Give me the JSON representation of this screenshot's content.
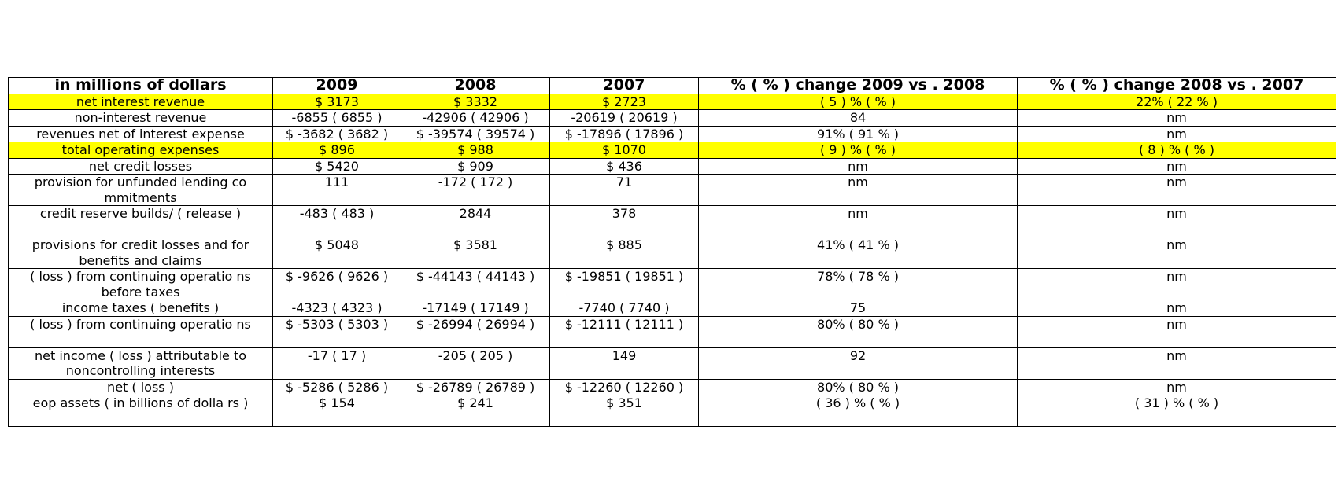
{
  "chart_data": {
    "type": "table",
    "columns": [
      "in millions of dollars",
      "2009",
      "2008",
      "2007",
      "% (  % ) change 2009 vs . 2008",
      "% (  % ) change 2008 vs . 2007"
    ],
    "rows": [
      {
        "cells": [
          "net interest revenue",
          "$ 3173",
          "$ 3332",
          "$ 2723",
          "( 5 ) % (  % )",
          "22% ( 22 % )"
        ],
        "highlight": true,
        "tall": false
      },
      {
        "cells": [
          "non-interest revenue",
          "-6855 ( 6855 )",
          "-42906 ( 42906 )",
          "-20619 ( 20619 )",
          "84",
          "nm"
        ],
        "highlight": false,
        "tall": false
      },
      {
        "cells": [
          "revenues net of interest expense",
          "$ -3682 ( 3682 )",
          "$ -39574 ( 39574 )",
          "$ -17896 ( 17896 )",
          "91% ( 91 % )",
          "nm"
        ],
        "highlight": false,
        "tall": false
      },
      {
        "cells": [
          "total operating expenses",
          "$ 896",
          "$ 988",
          "$ 1070",
          "( 9 ) % (  % )",
          "( 8 ) % (  % )"
        ],
        "highlight": true,
        "tall": false
      },
      {
        "cells": [
          "net credit losses",
          "$ 5420",
          "$ 909",
          "$ 436",
          "nm",
          "nm"
        ],
        "highlight": false,
        "tall": false
      },
      {
        "cells": [
          "provision for unfunded lending co mmitments",
          "111",
          "-172 ( 172 )",
          "71",
          "nm",
          "nm"
        ],
        "highlight": false,
        "tall": true
      },
      {
        "cells": [
          "credit reserve builds/ ( release )",
          "-483 ( 483 )",
          "2844",
          "378",
          "nm",
          "nm"
        ],
        "highlight": false,
        "tall": true
      },
      {
        "cells": [
          "provisions for credit losses and for benefits and claims",
          "$ 5048",
          "$ 3581",
          "$ 885",
          "41% ( 41 % )",
          "nm"
        ],
        "highlight": false,
        "tall": true
      },
      {
        "cells": [
          "( loss ) from continuing operatio ns before taxes",
          "$ -9626 ( 9626 )",
          "$ -44143 ( 44143 )",
          "$ -19851 ( 19851 )",
          "78% ( 78 % )",
          "nm"
        ],
        "highlight": false,
        "tall": true
      },
      {
        "cells": [
          "income taxes ( benefits )",
          "-4323 ( 4323 )",
          "-17149 ( 17149 )",
          "-7740 ( 7740 )",
          "75",
          "nm"
        ],
        "highlight": false,
        "tall": false
      },
      {
        "cells": [
          "( loss ) from continuing operatio ns",
          "$ -5303 ( 5303 )",
          "$ -26994 ( 26994 )",
          "$ -12111 ( 12111 )",
          "80% ( 80 % )",
          "nm"
        ],
        "highlight": false,
        "tall": true
      },
      {
        "cells": [
          "net income ( loss ) attributable to noncontrolling interests",
          "-17 ( 17 )",
          "-205 ( 205 )",
          "149",
          "92",
          "nm"
        ],
        "highlight": false,
        "tall": true
      },
      {
        "cells": [
          "net ( loss )",
          "$ -5286 ( 5286 )",
          "$ -26789 ( 26789 )",
          "$ -12260 ( 12260 )",
          "80% ( 80 % )",
          "nm"
        ],
        "highlight": false,
        "tall": false
      },
      {
        "cells": [
          "eop assets ( in billions of dolla rs )",
          "$ 154",
          "$ 241",
          "$ 351",
          "( 36 ) % (  % )",
          "( 31 ) % (  % )"
        ],
        "highlight": false,
        "tall": true
      }
    ]
  },
  "colors": {
    "highlight": "#ffff00",
    "border": "#000000",
    "text": "#000000"
  }
}
